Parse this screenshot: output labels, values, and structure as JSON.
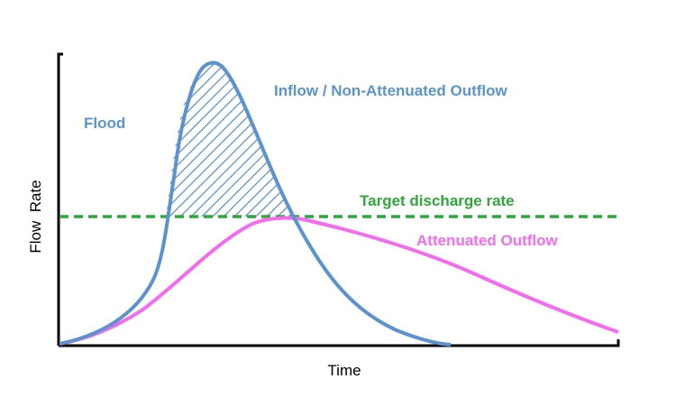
{
  "diagram": {
    "axes": {
      "x_label": "Time",
      "y_label": "Flow  Rate"
    },
    "labels": {
      "flood": "Flood",
      "inflow": "Inflow / Non-Attenuated Outflow",
      "target": "Target discharge rate",
      "attenuated": "Attenuated Outflow"
    },
    "colors": {
      "inflow": "#5b93cf",
      "outflow": "#f36cf0",
      "target": "#2fa83a",
      "axis": "#000000"
    }
  }
}
